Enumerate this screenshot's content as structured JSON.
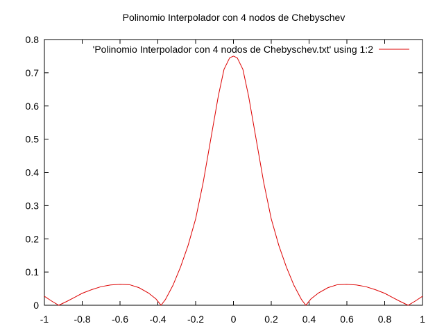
{
  "chart_data": {
    "type": "line",
    "title": "Polinomio Interpolador con 4 nodos de Chebyschev",
    "xlabel": "",
    "ylabel": "",
    "xlim": [
      -1,
      1
    ],
    "ylim": [
      0,
      0.8
    ],
    "xticks": [
      -1,
      -0.8,
      -0.6,
      -0.4,
      -0.2,
      0,
      0.2,
      0.4,
      0.6,
      0.8,
      1
    ],
    "xtick_labels": [
      "-1",
      "-0.8",
      "-0.6",
      "-0.4",
      "-0.2",
      "0",
      "0.2",
      "0.4",
      "0.6",
      "0.8",
      "1"
    ],
    "yticks": [
      0,
      0.1,
      0.2,
      0.3,
      0.4,
      0.5,
      0.6,
      0.7,
      0.8
    ],
    "ytick_labels": [
      "0",
      "0.1",
      "0.2",
      "0.3",
      "0.4",
      "0.5",
      "0.6",
      "0.7",
      "0.8"
    ],
    "grid": false,
    "legend_position": "top-right",
    "series": [
      {
        "name": "'Polinomio Interpolador con 4 nodos de Chebyschev.txt' using 1:2",
        "color": "#dd0000",
        "x": [
          -1,
          -0.96,
          -0.924,
          -0.88,
          -0.84,
          -0.8,
          -0.75,
          -0.7,
          -0.65,
          -0.6,
          -0.55,
          -0.5,
          -0.45,
          -0.41,
          -0.383,
          -0.36,
          -0.32,
          -0.28,
          -0.24,
          -0.2,
          -0.16,
          -0.12,
          -0.08,
          -0.05,
          -0.02,
          0,
          0.02,
          0.05,
          0.08,
          0.12,
          0.16,
          0.2,
          0.24,
          0.28,
          0.32,
          0.36,
          0.383,
          0.41,
          0.45,
          0.5,
          0.55,
          0.6,
          0.65,
          0.7,
          0.75,
          0.8,
          0.84,
          0.88,
          0.924,
          0.96,
          1
        ],
        "values": [
          0.027,
          0.012,
          0.0,
          0.012,
          0.024,
          0.036,
          0.047,
          0.056,
          0.061,
          0.063,
          0.062,
          0.053,
          0.037,
          0.019,
          0.0,
          0.017,
          0.06,
          0.115,
          0.18,
          0.26,
          0.37,
          0.5,
          0.63,
          0.71,
          0.745,
          0.75,
          0.745,
          0.71,
          0.63,
          0.5,
          0.37,
          0.26,
          0.18,
          0.115,
          0.06,
          0.017,
          0.0,
          0.019,
          0.037,
          0.053,
          0.062,
          0.063,
          0.061,
          0.056,
          0.047,
          0.036,
          0.024,
          0.012,
          0.0,
          0.012,
          0.027
        ]
      }
    ]
  }
}
